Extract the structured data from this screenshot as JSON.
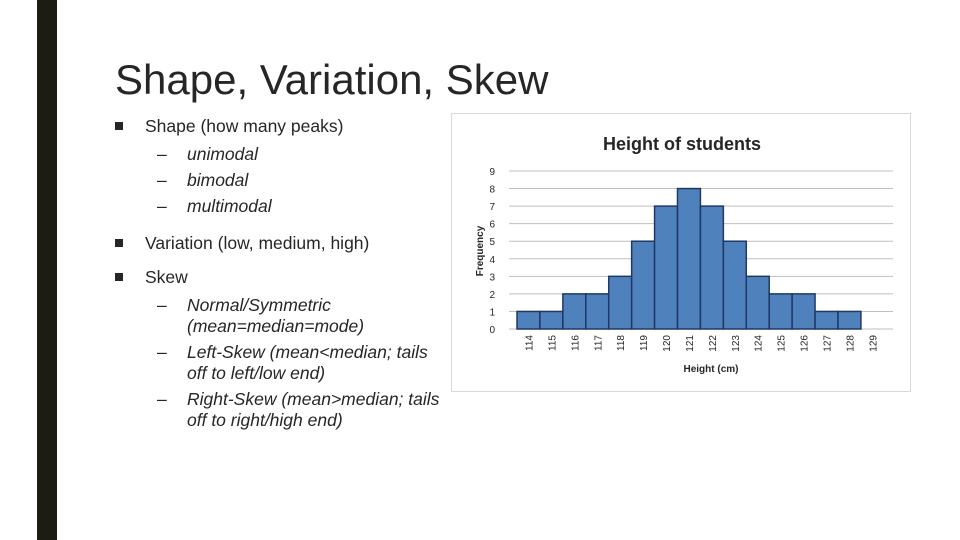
{
  "colors": {
    "side_bar": "#1c1c14",
    "bar_fill": "#4f81bd",
    "bar_stroke": "#1f3864",
    "text": "#262626",
    "grid": "#bfbfbf"
  },
  "slide": {
    "title": "Shape, Variation, Skew"
  },
  "bullets": [
    {
      "text": "Shape (how many peaks)",
      "subs": [
        "unimodal",
        "bimodal",
        "multimodal"
      ]
    },
    {
      "text": "Variation (low, medium, high)",
      "subs": []
    },
    {
      "text": "Skew",
      "subs": [
        "Normal/Symmetric (mean=median=mode)",
        "Left-Skew (mean<median; tails off to left/low end)",
        "Right-Skew (mean>median; tails off to right/high end)"
      ]
    }
  ],
  "sub_dash": "–",
  "bullet_icon": "square-bullet",
  "chart_data": {
    "type": "bar",
    "title": "Height of students",
    "xlabel": "Height (cm)",
    "ylabel": "Frequency",
    "categories": [
      "114",
      "115",
      "116",
      "117",
      "118",
      "119",
      "120",
      "121",
      "122",
      "123",
      "124",
      "125",
      "126",
      "127",
      "128",
      "129"
    ],
    "values": [
      1,
      1,
      2,
      2,
      3,
      5,
      7,
      8,
      7,
      5,
      3,
      2,
      2,
      1,
      1,
      0
    ],
    "ylim": [
      0,
      9
    ],
    "yticks": [
      "0",
      "1",
      "2",
      "3",
      "4",
      "5",
      "6",
      "7",
      "8",
      "9"
    ],
    "grid": true,
    "legend": "none"
  }
}
